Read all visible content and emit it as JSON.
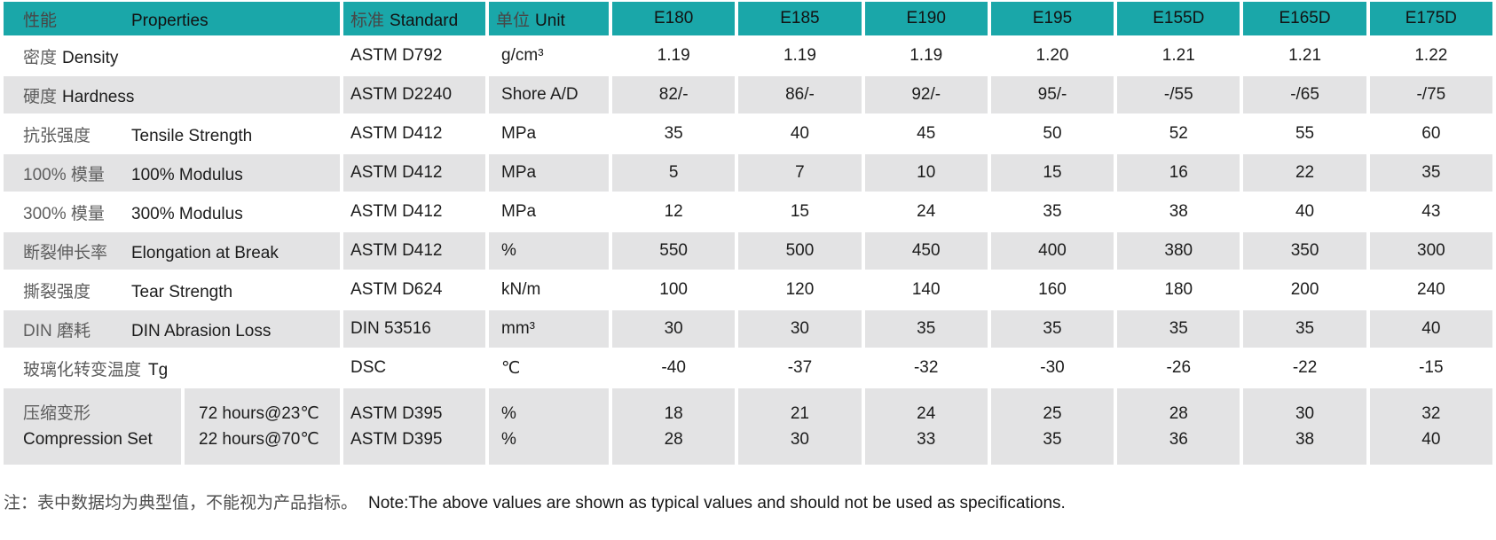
{
  "header": {
    "properties": {
      "zh": "性能",
      "en": "Properties"
    },
    "standard": {
      "zh": "标准",
      "en": "Standard"
    },
    "unit": {
      "zh": "单位",
      "en": "Unit"
    },
    "grades": [
      "E180",
      "E185",
      "E190",
      "E195",
      "E155D",
      "E165D",
      "E175D"
    ]
  },
  "rows": [
    {
      "zh": "密度",
      "en": "Density",
      "standard": "ASTM D792",
      "unit": "g/cm³",
      "values": [
        "1.19",
        "1.19",
        "1.19",
        "1.20",
        "1.21",
        "1.21",
        "1.22"
      ]
    },
    {
      "zh": "硬度",
      "en": "Hardness",
      "standard": "ASTM D2240",
      "unit": "Shore A/D",
      "values": [
        "82/-",
        "86/-",
        "92/-",
        "95/-",
        "-/55",
        "-/65",
        "-/75"
      ]
    },
    {
      "zh": "抗张强度",
      "en": "Tensile Strength",
      "standard": "ASTM D412",
      "unit": "MPa",
      "values": [
        "35",
        "40",
        "45",
        "50",
        "52",
        "55",
        "60"
      ]
    },
    {
      "zh": "100% 模量",
      "en": "100% Modulus",
      "standard": "ASTM D412",
      "unit": "MPa",
      "values": [
        "5",
        "7",
        "10",
        "15",
        "16",
        "22",
        "35"
      ]
    },
    {
      "zh": "300% 模量",
      "en": "300% Modulus",
      "standard": "ASTM D412",
      "unit": "MPa",
      "values": [
        "12",
        "15",
        "24",
        "35",
        "38",
        "40",
        "43"
      ]
    },
    {
      "zh": "断裂伸长率",
      "en": "Elongation at Break",
      "standard": "ASTM D412",
      "unit": "%",
      "values": [
        "550",
        "500",
        "450",
        "400",
        "380",
        "350",
        "300"
      ]
    },
    {
      "zh": "撕裂强度",
      "en": "Tear Strength",
      "standard": "ASTM D624",
      "unit": "kN/m",
      "values": [
        "100",
        "120",
        "140",
        "160",
        "180",
        "200",
        "240"
      ]
    },
    {
      "zh": "DIN 磨耗",
      "en": "DIN Abrasion Loss",
      "standard": "DIN 53516",
      "unit": "mm³",
      "values": [
        "30",
        "30",
        "35",
        "35",
        "35",
        "35",
        "40"
      ]
    },
    {
      "zh": "玻璃化转变温度",
      "en": "Tg",
      "standard": "DSC",
      "unit": "℃",
      "values": [
        "-40",
        "-37",
        "-32",
        "-30",
        "-26",
        "-22",
        "-15"
      ]
    }
  ],
  "compression_row": {
    "zh": "压缩变形",
    "en": "Compression Set",
    "conditions": [
      "72 hours@23℃",
      "22 hours@70℃"
    ],
    "standards": [
      "ASTM D395",
      "ASTM D395"
    ],
    "units": [
      "%",
      "%"
    ],
    "values": [
      [
        "18",
        "28"
      ],
      [
        "21",
        "30"
      ],
      [
        "24",
        "33"
      ],
      [
        "25",
        "35"
      ],
      [
        "28",
        "36"
      ],
      [
        "30",
        "38"
      ],
      [
        "32",
        "40"
      ]
    ]
  },
  "footnote": {
    "zh": "注：表中数据均为典型值，不能视为产品指标。",
    "en": "Note:The above values are shown as typical values and should not be used as specifications."
  },
  "colors": {
    "header_teal": "#1aa7a9",
    "row_gray": "#e3e3e4",
    "row_white": "#ffffff"
  }
}
